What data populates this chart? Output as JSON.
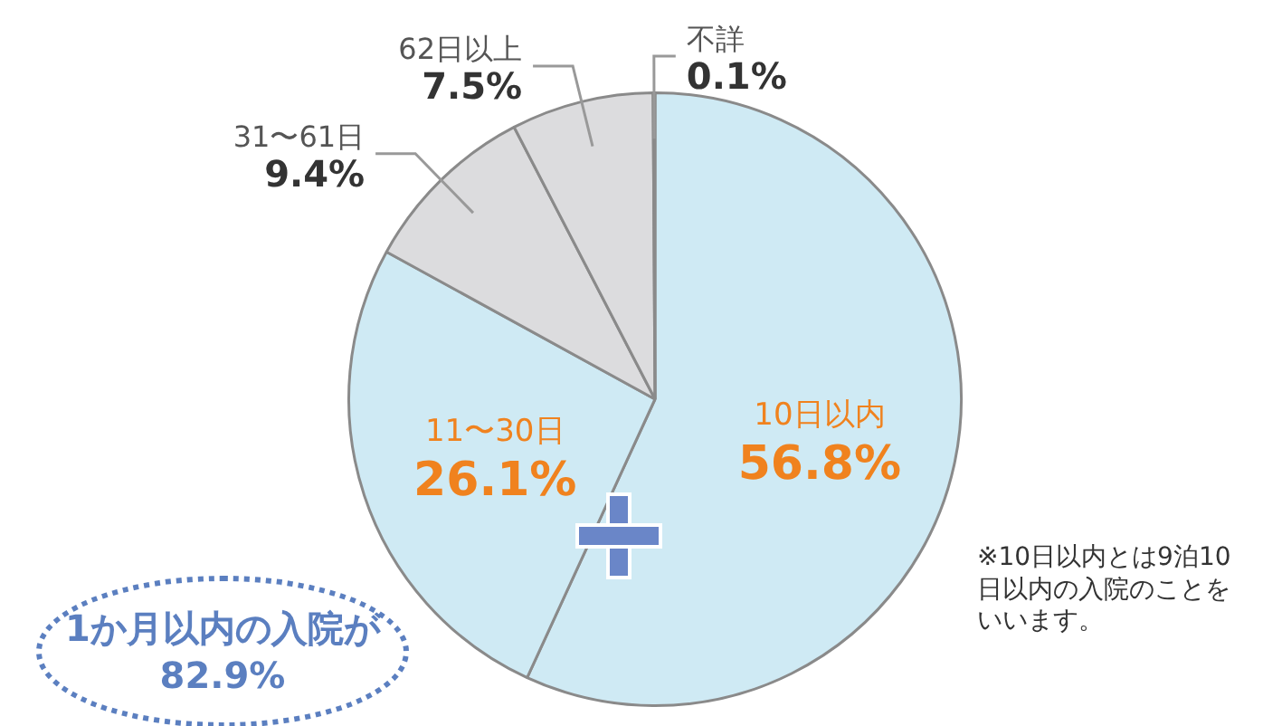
{
  "chart_data": {
    "type": "pie",
    "categories": [
      "10日以内",
      "11〜30日",
      "31〜61日",
      "62日以上",
      "不詳"
    ],
    "values": [
      56.8,
      26.1,
      9.4,
      7.5,
      0.1
    ],
    "value_labels": [
      "56.8%",
      "26.1%",
      "9.4%",
      "7.5%",
      "0.1%"
    ],
    "colors": [
      "#cfeaf4",
      "#cfeaf4",
      "#dcdcde",
      "#dcdcde",
      "#dcdcde"
    ],
    "legend": false,
    "annotations": [
      "1か月以内の入院が82.9%",
      "※10日以内とは9泊10日以内の入院のことをいいます。"
    ]
  }
}
